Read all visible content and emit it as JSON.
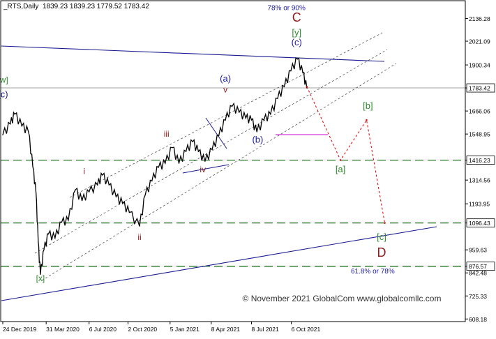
{
  "header": {
    "symbol": "_RTS,Daily",
    "ohlc": "1839.23 1839.23 1779.52 1783.42"
  },
  "colors": {
    "background": "#ffffff",
    "price": "#000000",
    "wave_blue": "#1a1aa0",
    "wave_green": "#2e8b2e",
    "wave_red": "#8b1a1a",
    "channel": "#555555",
    "target": "#e00000",
    "level_line": "#006400",
    "magenta": "#cc00cc"
  },
  "chart_data": {
    "type": "line",
    "title": "",
    "xlabel": "",
    "ylabel": "",
    "ylim": [
      595,
      2220
    ],
    "x_ticks": [
      "24 Dec 2019",
      "31 Mar 2020",
      "6 Jul 2020",
      "2 Oct 2020",
      "5 Jan 2021",
      "8 Apr 2021",
      "8 Jul 2021",
      "6 Oct 2021"
    ],
    "y_ticks": [
      "2136.28",
      "2021.09",
      "1900.34",
      "1783.42",
      "1666.06",
      "1548.95",
      "1416.23",
      "1314.56",
      "1193.95",
      "1096.43",
      "959.63",
      "876.57",
      "842.48",
      "725.33",
      "608.18"
    ],
    "current_price": 1783.42,
    "levels": [
      1416.23,
      1096.43,
      876.57
    ],
    "series": [
      {
        "values": [
          {
            "x": "2019-12-24",
            "y": 1545
          },
          {
            "x": "2020-01-10",
            "y": 1600
          },
          {
            "x": "2020-01-20",
            "y": 1650
          },
          {
            "x": "2020-02-05",
            "y": 1590
          },
          {
            "x": "2020-02-20",
            "y": 1560
          },
          {
            "x": "2020-03-01",
            "y": 1380
          },
          {
            "x": "2020-03-08",
            "y": 1250
          },
          {
            "x": "2020-03-13",
            "y": 1000
          },
          {
            "x": "2020-03-18",
            "y": 835
          },
          {
            "x": "2020-03-26",
            "y": 960
          },
          {
            "x": "2020-04-05",
            "y": 1040
          },
          {
            "x": "2020-04-20",
            "y": 1020
          },
          {
            "x": "2020-05-05",
            "y": 1100
          },
          {
            "x": "2020-05-20",
            "y": 1110
          },
          {
            "x": "2020-06-05",
            "y": 1265
          },
          {
            "x": "2020-06-20",
            "y": 1210
          },
          {
            "x": "2020-07-06",
            "y": 1255
          },
          {
            "x": "2020-07-25",
            "y": 1290
          },
          {
            "x": "2020-08-05",
            "y": 1340
          },
          {
            "x": "2020-08-20",
            "y": 1290
          },
          {
            "x": "2020-09-05",
            "y": 1230
          },
          {
            "x": "2020-09-20",
            "y": 1195
          },
          {
            "x": "2020-10-05",
            "y": 1150
          },
          {
            "x": "2020-10-28",
            "y": 1080
          },
          {
            "x": "2020-11-10",
            "y": 1240
          },
          {
            "x": "2020-11-25",
            "y": 1310
          },
          {
            "x": "2020-12-10",
            "y": 1380
          },
          {
            "x": "2020-12-25",
            "y": 1400
          },
          {
            "x": "2021-01-10",
            "y": 1480
          },
          {
            "x": "2021-01-25",
            "y": 1400
          },
          {
            "x": "2021-02-10",
            "y": 1460
          },
          {
            "x": "2021-02-25",
            "y": 1510
          },
          {
            "x": "2021-03-10",
            "y": 1460
          },
          {
            "x": "2021-03-25",
            "y": 1410
          },
          {
            "x": "2021-04-10",
            "y": 1470
          },
          {
            "x": "2021-04-25",
            "y": 1540
          },
          {
            "x": "2021-05-10",
            "y": 1620
          },
          {
            "x": "2021-05-25",
            "y": 1690
          },
          {
            "x": "2021-06-10",
            "y": 1660
          },
          {
            "x": "2021-06-25",
            "y": 1630
          },
          {
            "x": "2021-07-08",
            "y": 1620
          },
          {
            "x": "2021-07-20",
            "y": 1560
          },
          {
            "x": "2021-08-05",
            "y": 1620
          },
          {
            "x": "2021-08-20",
            "y": 1650
          },
          {
            "x": "2021-09-05",
            "y": 1730
          },
          {
            "x": "2021-09-20",
            "y": 1790
          },
          {
            "x": "2021-10-05",
            "y": 1870
          },
          {
            "x": "2021-10-20",
            "y": 1930
          },
          {
            "x": "2021-11-01",
            "y": 1860
          },
          {
            "x": "2021-11-10",
            "y": 1783
          }
        ]
      },
      {
        "values": [
          {
            "x": "2021-11-10",
            "y": 1790
          },
          {
            "x": "2022-01-25",
            "y": 1416
          },
          {
            "x": "2022-03-25",
            "y": 1620
          },
          {
            "x": "2022-05-05",
            "y": 1096
          }
        ]
      }
    ],
    "annotations": [
      {
        "text": "[w]",
        "x": "2019-12-24",
        "y": 1810
      },
      {
        "text": "(c)",
        "x": "2019-12-24",
        "y": 1735
      },
      {
        "text": "[x]",
        "x": "2020-03-18",
        "y": 800
      },
      {
        "text": "i",
        "x": "2020-06-25",
        "y": 1345
      },
      {
        "text": "ii",
        "x": "2020-10-28",
        "y": 1010
      },
      {
        "text": "iii",
        "x": "2020-12-28",
        "y": 1535
      },
      {
        "text": "iv",
        "x": "2021-03-20",
        "y": 1355
      },
      {
        "text": "(a)",
        "x": "2021-05-10",
        "y": 1815
      },
      {
        "text": "v",
        "x": "2021-05-10",
        "y": 1760
      },
      {
        "text": "(b)",
        "x": "2021-07-22",
        "y": 1505
      },
      {
        "text": "78% or 90%",
        "x": "2021-09-25",
        "y": 2180
      },
      {
        "text": "C",
        "x": "2021-10-18",
        "y": 2120
      },
      {
        "text": "[y]",
        "x": "2021-10-18",
        "y": 2050
      },
      {
        "text": "(c)",
        "x": "2021-10-18",
        "y": 2000
      },
      {
        "text": "[b]",
        "x": "2022-03-28",
        "y": 1678
      },
      {
        "text": "[a]",
        "x": "2022-01-25",
        "y": 1355
      },
      {
        "text": "[c]",
        "x": "2022-04-28",
        "y": 1010
      },
      {
        "text": "D",
        "x": "2022-04-28",
        "y": 925
      },
      {
        "text": "61.8% or 78%",
        "x": "2022-04-08",
        "y": 840
      }
    ],
    "watermark": "© November 2021 GlobalCom www.globalcomllc.com"
  }
}
